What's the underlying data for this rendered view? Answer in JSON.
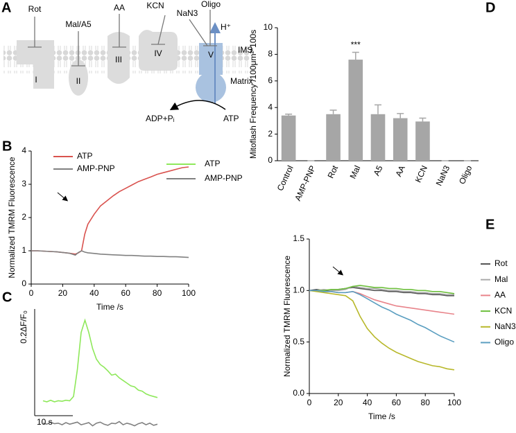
{
  "diagram": {
    "panel_label": "A",
    "inhibitors": [
      "Rot",
      "Mal/A5",
      "AA",
      "KCN",
      "NaN3",
      "Oligo"
    ],
    "complexes": [
      "I",
      "II",
      "III",
      "IV",
      "V"
    ],
    "proton": "H⁺",
    "ims": "IMS",
    "matrix": "Matrix",
    "adp": "ADP+Pᵢ",
    "atp": "ATP"
  },
  "chart_data": [
    {
      "type": "line",
      "panel_label": "B",
      "xlabel": "Time /s",
      "ylabel": "Normalized TMRM Fluorescence",
      "x": [
        0,
        4,
        8,
        12,
        16,
        20,
        24,
        28,
        30,
        32,
        34,
        36,
        40,
        44,
        48,
        52,
        56,
        60,
        64,
        68,
        72,
        76,
        80,
        84,
        88,
        92,
        96,
        100
      ],
      "xlim": [
        0,
        100
      ],
      "xticks": [
        0,
        20,
        40,
        60,
        80,
        100
      ],
      "ylim": [
        0,
        4
      ],
      "yticks": [
        0,
        1,
        2,
        3,
        4
      ],
      "legend": "upper left",
      "series": [
        {
          "name": "ATP",
          "color": "#d9524e",
          "values": [
            1,
            1,
            0.99,
            0.98,
            0.97,
            0.95,
            0.93,
            0.9,
            0.94,
            1.0,
            1.5,
            1.8,
            2.1,
            2.35,
            2.5,
            2.65,
            2.78,
            2.88,
            2.98,
            3.08,
            3.15,
            3.22,
            3.3,
            3.35,
            3.4,
            3.45,
            3.5,
            3.52
          ]
        },
        {
          "name": "AMP-PNP",
          "color": "#808080",
          "values": [
            1,
            1,
            0.99,
            0.98,
            0.97,
            0.95,
            0.93,
            0.87,
            0.95,
            1.0,
            0.96,
            0.94,
            0.92,
            0.9,
            0.89,
            0.88,
            0.87,
            0.86,
            0.86,
            0.85,
            0.84,
            0.84,
            0.83,
            0.83,
            0.82,
            0.82,
            0.81,
            0.8
          ]
        }
      ]
    },
    {
      "type": "trace",
      "panel_label": "C",
      "x": [
        0,
        1,
        2,
        3,
        4,
        5,
        6,
        7,
        8,
        9,
        10,
        11,
        12,
        13,
        14,
        15,
        16,
        17,
        18,
        19,
        20,
        21,
        22,
        23,
        24,
        25,
        26,
        27,
        28,
        29,
        30
      ],
      "scale_bar": {
        "x": 10,
        "x_label": "10 s",
        "y": 0.2,
        "y_label": "0.2ΔF/F₀"
      },
      "series": [
        {
          "name": "ATP",
          "color": "#8ee85a",
          "values": [
            0.002,
            0,
            0.003,
            0,
            0.002,
            0.001,
            0.003,
            0.002,
            0.01,
            0.06,
            0.13,
            0.153,
            0.13,
            0.1,
            0.08,
            0.07,
            0.065,
            0.058,
            0.05,
            0.052,
            0.045,
            0.04,
            0.035,
            0.03,
            0.028,
            0.022,
            0.02,
            0.015,
            0.012,
            0.01,
            0.008
          ]
        },
        {
          "name": "AMP-PNP",
          "color": "#808080",
          "values": [
            -0.04,
            -0.042,
            -0.038,
            -0.041,
            -0.04,
            -0.043,
            -0.039,
            -0.042,
            -0.04,
            -0.038,
            -0.043,
            -0.041,
            -0.039,
            -0.045,
            -0.04,
            -0.038,
            -0.042,
            -0.044,
            -0.04,
            -0.041,
            -0.037,
            -0.043,
            -0.04,
            -0.042,
            -0.045,
            -0.041,
            -0.039,
            -0.043,
            -0.04,
            -0.044,
            -0.042
          ]
        }
      ]
    },
    {
      "type": "bar",
      "panel_label": "D",
      "ylabel": "Mitoflash Frequency /100μm²*100s",
      "categories": [
        "Control",
        "AMP-PNP",
        "Rot",
        "Mal",
        "A5",
        "AA",
        "KCN",
        "NaN3",
        "Oligo"
      ],
      "values": [
        3.4,
        0,
        3.5,
        7.6,
        3.5,
        3.2,
        2.95,
        0,
        0
      ],
      "errors": [
        0.1,
        0,
        0.3,
        0.55,
        0.7,
        0.35,
        0.25,
        0,
        0
      ],
      "annotations": [
        {
          "category": "Mal",
          "text": "***"
        }
      ],
      "color": "#a6a6a6",
      "ylim": [
        0,
        10
      ],
      "yticks": [
        0,
        2,
        4,
        6,
        8,
        10
      ]
    },
    {
      "type": "line",
      "panel_label": "E",
      "xlabel": "Time /s",
      "ylabel": "Normalized TMRM Fluorescence",
      "x": [
        0,
        5,
        10,
        15,
        20,
        25,
        30,
        35,
        40,
        45,
        50,
        55,
        60,
        65,
        70,
        75,
        80,
        85,
        90,
        95,
        100
      ],
      "xlim": [
        0,
        100
      ],
      "xticks": [
        0,
        20,
        40,
        60,
        80,
        100
      ],
      "ylim": [
        0,
        1.5
      ],
      "yticks": [
        {
          "value": 0,
          "label": "0.0"
        },
        0.5,
        {
          "value": 1,
          "label": "1.0"
        },
        1.5
      ],
      "legend": "right",
      "series": [
        {
          "name": "Rot",
          "color": "#555555",
          "values": [
            1,
            1.01,
            1.0,
            1.0,
            1.01,
            1.02,
            1.03,
            1.02,
            1.01,
            1.0,
            1.0,
            0.99,
            0.99,
            0.98,
            0.98,
            0.97,
            0.97,
            0.96,
            0.96,
            0.95,
            0.95
          ]
        },
        {
          "name": "Mal",
          "color": "#aaaaaa",
          "values": [
            1,
            1.0,
            1.01,
            1.0,
            1.0,
            1.01,
            1.04,
            1.03,
            1.02,
            1.02,
            1.01,
            1.0,
            1.0,
            0.99,
            0.99,
            0.98,
            0.98,
            0.97,
            0.97,
            0.96,
            0.96
          ]
        },
        {
          "name": "AA",
          "color": "#e8838a",
          "values": [
            1,
            1.0,
            0.99,
            0.99,
            0.98,
            0.98,
            0.99,
            0.97,
            0.94,
            0.91,
            0.89,
            0.87,
            0.85,
            0.84,
            0.83,
            0.82,
            0.81,
            0.8,
            0.79,
            0.78,
            0.77
          ]
        },
        {
          "name": "KCN",
          "color": "#6dbf3c",
          "values": [
            1,
            1.0,
            1.0,
            1.01,
            1.01,
            1.02,
            1.04,
            1.05,
            1.04,
            1.03,
            1.03,
            1.02,
            1.02,
            1.01,
            1.01,
            1.0,
            1.0,
            0.99,
            0.99,
            0.98,
            0.97
          ]
        },
        {
          "name": "NaN3",
          "color": "#b8b82a",
          "values": [
            1,
            0.99,
            0.98,
            0.97,
            0.96,
            0.95,
            0.9,
            0.75,
            0.63,
            0.55,
            0.49,
            0.44,
            0.4,
            0.37,
            0.34,
            0.31,
            0.29,
            0.27,
            0.26,
            0.24,
            0.23
          ]
        },
        {
          "name": "Oligo",
          "color": "#5a9ec0",
          "values": [
            1,
            1.0,
            0.99,
            0.99,
            0.98,
            0.98,
            0.99,
            0.96,
            0.92,
            0.88,
            0.84,
            0.81,
            0.77,
            0.74,
            0.71,
            0.67,
            0.64,
            0.6,
            0.56,
            0.53,
            0.5
          ]
        }
      ]
    }
  ]
}
